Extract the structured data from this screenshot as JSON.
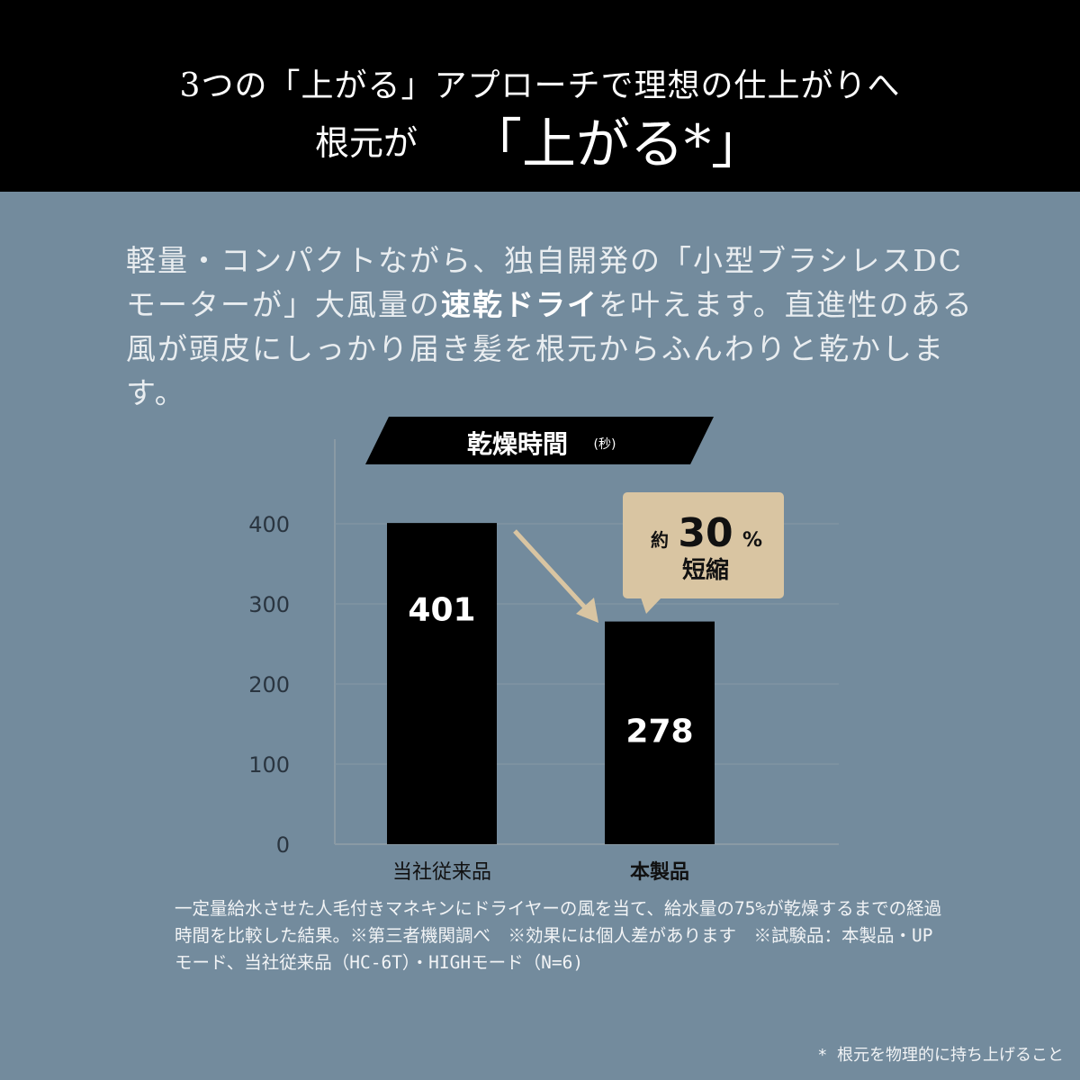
{
  "header": {
    "line1": "3つの「上がる」アプローチで理想の仕上がりへ",
    "line2_prefix": "根元が",
    "line2_main": "「上がる*」"
  },
  "paragraph": {
    "part1": "軽量・コンパクトながら、独自開発の「小型ブラシレスDCモーターが」大風量の",
    "bold": "速乾ドライ",
    "part2": "を叶えます。直進性のある風が頭皮にしっかり届き髪を根元からふんわりと乾かします。"
  },
  "chart_data": {
    "type": "bar",
    "title": "乾燥時間",
    "title_unit": "(秒)",
    "categories": [
      "当社従来品",
      "本製品"
    ],
    "values": [
      401,
      278
    ],
    "data_labels": [
      "401",
      "278"
    ],
    "ylim": [
      0,
      400
    ],
    "yticks": [
      "0",
      "100",
      "200",
      "300",
      "400"
    ],
    "grid": true,
    "colors": {
      "bars": "#000000",
      "callout": "#d9c5a2",
      "arrow": "#d9c5a2"
    },
    "callout": {
      "prefix": "約",
      "value": "30",
      "unit": "%",
      "text": "短縮"
    }
  },
  "notes": {
    "text": "一定量給水させた人毛付きマネキンにドライヤーの風を当て、給水量の75%が乾燥するまでの経過時間を比較した結果。※第三者機関調べ　※効果には個人差があります　※試験品：本製品・UPモード、当社従来品（HC-6T）・HIGHモード（N=6)",
    "footnote": "* 根元を物理的に持ち上げること"
  }
}
